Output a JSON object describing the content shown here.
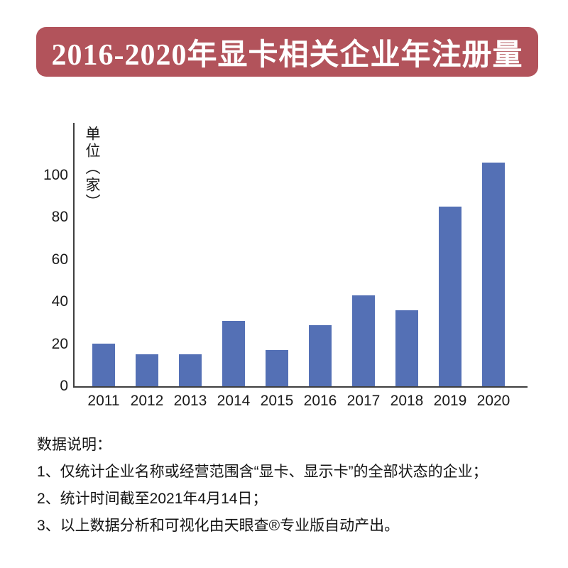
{
  "banner": {
    "title": "2016-2020年显卡相关企业年注册量",
    "bg_color": "#b2535b",
    "text_color": "#ffffff"
  },
  "chart_data": {
    "type": "bar",
    "title": "2016-2020年显卡相关企业年注册量",
    "categories": [
      "2011",
      "2012",
      "2013",
      "2014",
      "2015",
      "2016",
      "2017",
      "2018",
      "2019",
      "2020"
    ],
    "values": [
      20,
      15,
      15,
      31,
      17,
      29,
      43,
      36,
      85,
      106
    ],
    "ylabel": "单位（家）",
    "xlabel": "",
    "yticks": [
      0,
      20,
      40,
      60,
      80,
      100
    ],
    "ylim": [
      0,
      110
    ],
    "grid": false,
    "legend_position": "none",
    "bar_color": "#5470b5",
    "axis_color": "#3f3f3f"
  },
  "notes": {
    "heading": "数据说明：",
    "items": [
      "1、仅统计企业名称或经营范围含“显卡、显示卡”的全部状态的企业；",
      "2、统计时间截至2021年4月14日；",
      "3、以上数据分析和可视化由天眼查®专业版自动产出。"
    ]
  }
}
